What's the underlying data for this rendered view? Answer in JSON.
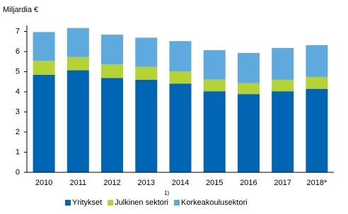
{
  "chart_data": {
    "type": "stacked_bar",
    "y_label": "Miljardia €",
    "categories": [
      "2010",
      "2011",
      "2012",
      "2013",
      "2014",
      "2015",
      "2016",
      "2017",
      "2018*"
    ],
    "series": [
      {
        "name": "Yritykset",
        "color": "#0066b3",
        "values": [
          4.85,
          5.07,
          4.69,
          4.6,
          4.41,
          4.03,
          3.89,
          4.03,
          4.15
        ]
      },
      {
        "name": "Julkinen sektori",
        "color": "#b5d334",
        "values": [
          0.69,
          0.66,
          0.67,
          0.64,
          0.61,
          0.58,
          0.54,
          0.57,
          0.59
        ]
      },
      {
        "name": "Korkeakoulusektori",
        "color": "#5eaade",
        "values": [
          1.43,
          1.44,
          1.48,
          1.45,
          1.5,
          1.46,
          1.5,
          1.58,
          1.58
        ]
      }
    ],
    "legend_note": "1)",
    "ylim": [
      0,
      7.3
    ],
    "yticks": [
      0,
      1,
      2,
      3,
      4,
      5,
      6,
      7
    ],
    "grid": false
  }
}
